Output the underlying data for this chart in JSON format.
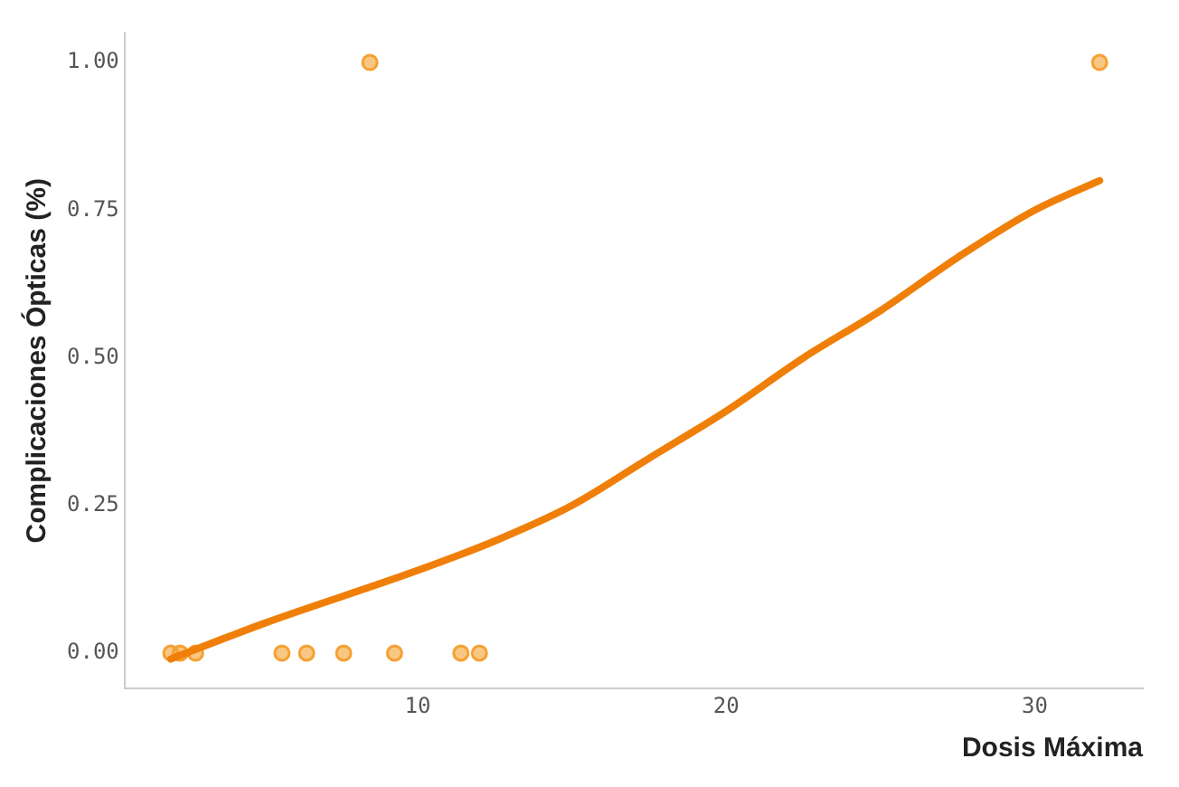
{
  "chart_data": {
    "type": "scatter",
    "xlabel": "Dosis Máxima",
    "ylabel": "Complicaciones Ópticas (%)",
    "xlim": [
      0.5,
      33.5
    ],
    "xticks": [
      10,
      20,
      30
    ],
    "ylim": [
      -0.06,
      1.05
    ],
    "yticks": [
      {
        "value": 0,
        "label": "0.00"
      },
      {
        "value": 0.25,
        "label": "0.25"
      },
      {
        "value": 0.5,
        "label": "0.50"
      },
      {
        "value": 0.75,
        "label": "0.75"
      },
      {
        "value": 1,
        "label": "1.00"
      }
    ],
    "grid": false,
    "legend": false,
    "marker": "circle",
    "series": [
      {
        "color": "#f5a132",
        "x": [
          2.0,
          2.3,
          2.8,
          5.6,
          6.4,
          7.6,
          9.25,
          11.4,
          12.0,
          8.45,
          32.1
        ],
        "values": [
          0,
          0,
          0,
          0,
          0,
          0,
          0,
          0,
          0,
          1,
          1
        ]
      },
      {
        "type": "line",
        "color": "#f07f09",
        "marker": "none",
        "x": [
          2.0,
          5,
          10,
          12.5,
          15,
          17.5,
          20,
          22.5,
          25,
          27.5,
          30,
          32.1
        ],
        "values": [
          -0.01,
          0.05,
          0.14,
          0.19,
          0.25,
          0.33,
          0.41,
          0.5,
          0.58,
          0.67,
          0.75,
          0.8
        ]
      }
    ]
  }
}
